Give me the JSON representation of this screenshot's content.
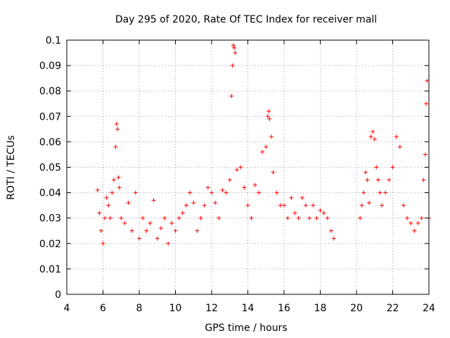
{
  "chart_data": {
    "type": "scatter",
    "title": "Day 295 of 2020, Rate Of TEC Index for receiver mall",
    "xlabel": "GPS time / hours",
    "ylabel": "ROTI / TECUs",
    "xlim": [
      4,
      24
    ],
    "ylim": [
      0,
      0.1
    ],
    "xticks": [
      "4",
      "6",
      "8",
      "10",
      "12",
      "14",
      "16",
      "18",
      "20",
      "22",
      "24"
    ],
    "yticks": [
      "0",
      "0.01",
      "0.02",
      "0.03",
      "0.04",
      "0.05",
      "0.06",
      "0.07",
      "0.08",
      "0.09",
      "0.1"
    ],
    "grid": true,
    "marker": "plus",
    "color": "#ff0000",
    "series": [
      {
        "x": [
          5.7,
          5.8,
          5.9,
          6.0,
          6.1,
          6.2,
          6.3,
          6.4,
          6.5,
          6.6,
          6.7,
          6.75,
          6.8,
          6.85,
          6.9,
          7.0,
          7.2,
          7.4,
          7.6,
          7.8,
          8.0,
          8.2,
          8.4,
          8.6,
          8.8,
          9.0,
          9.2,
          9.4,
          9.6,
          9.8,
          10.0,
          10.2,
          10.4,
          10.6,
          10.8,
          11.0,
          11.2,
          11.4,
          11.6,
          11.8,
          12.0,
          12.2,
          12.4,
          12.6,
          12.8,
          13.0,
          13.1,
          13.15,
          13.2,
          13.25,
          13.3,
          13.4,
          13.6,
          13.8,
          14.0,
          14.2,
          14.4,
          14.6,
          14.8,
          15.0,
          15.1,
          15.15,
          15.2,
          15.3,
          15.4,
          15.6,
          15.8,
          16.0,
          16.2,
          16.4,
          16.6,
          16.8,
          17.0,
          17.2,
          17.4,
          17.6,
          17.8,
          18.0,
          18.2,
          18.4,
          18.6,
          18.75,
          20.2,
          20.3,
          20.4,
          20.5,
          20.6,
          20.7,
          20.8,
          20.9,
          21.0,
          21.1,
          21.2,
          21.3,
          21.4,
          21.6,
          21.8,
          22.0,
          22.2,
          22.4,
          22.6,
          22.8,
          23.0,
          23.2,
          23.4,
          23.6,
          23.7,
          23.8,
          23.85,
          23.9,
          24.0
        ],
        "y": [
          0.041,
          0.032,
          0.025,
          0.02,
          0.03,
          0.038,
          0.035,
          0.03,
          0.04,
          0.045,
          0.058,
          0.067,
          0.065,
          0.046,
          0.042,
          0.03,
          0.028,
          0.036,
          0.025,
          0.04,
          0.022,
          0.03,
          0.025,
          0.028,
          0.037,
          0.022,
          0.026,
          0.03,
          0.02,
          0.028,
          0.025,
          0.03,
          0.032,
          0.035,
          0.04,
          0.036,
          0.025,
          0.03,
          0.035,
          0.042,
          0.04,
          0.036,
          0.03,
          0.041,
          0.04,
          0.045,
          0.078,
          0.09,
          0.098,
          0.097,
          0.095,
          0.049,
          0.05,
          0.042,
          0.035,
          0.03,
          0.043,
          0.04,
          0.056,
          0.058,
          0.07,
          0.072,
          0.069,
          0.062,
          0.048,
          0.04,
          0.035,
          0.035,
          0.03,
          0.038,
          0.032,
          0.03,
          0.038,
          0.035,
          0.03,
          0.035,
          0.03,
          0.033,
          0.032,
          0.03,
          0.025,
          0.022,
          0.03,
          0.035,
          0.04,
          0.048,
          0.045,
          0.036,
          0.062,
          0.064,
          0.061,
          0.05,
          0.045,
          0.04,
          0.035,
          0.04,
          0.045,
          0.05,
          0.062,
          0.058,
          0.035,
          0.03,
          0.028,
          0.025,
          0.028,
          0.03,
          0.045,
          0.055,
          0.075,
          0.084,
          0.03
        ]
      }
    ]
  }
}
